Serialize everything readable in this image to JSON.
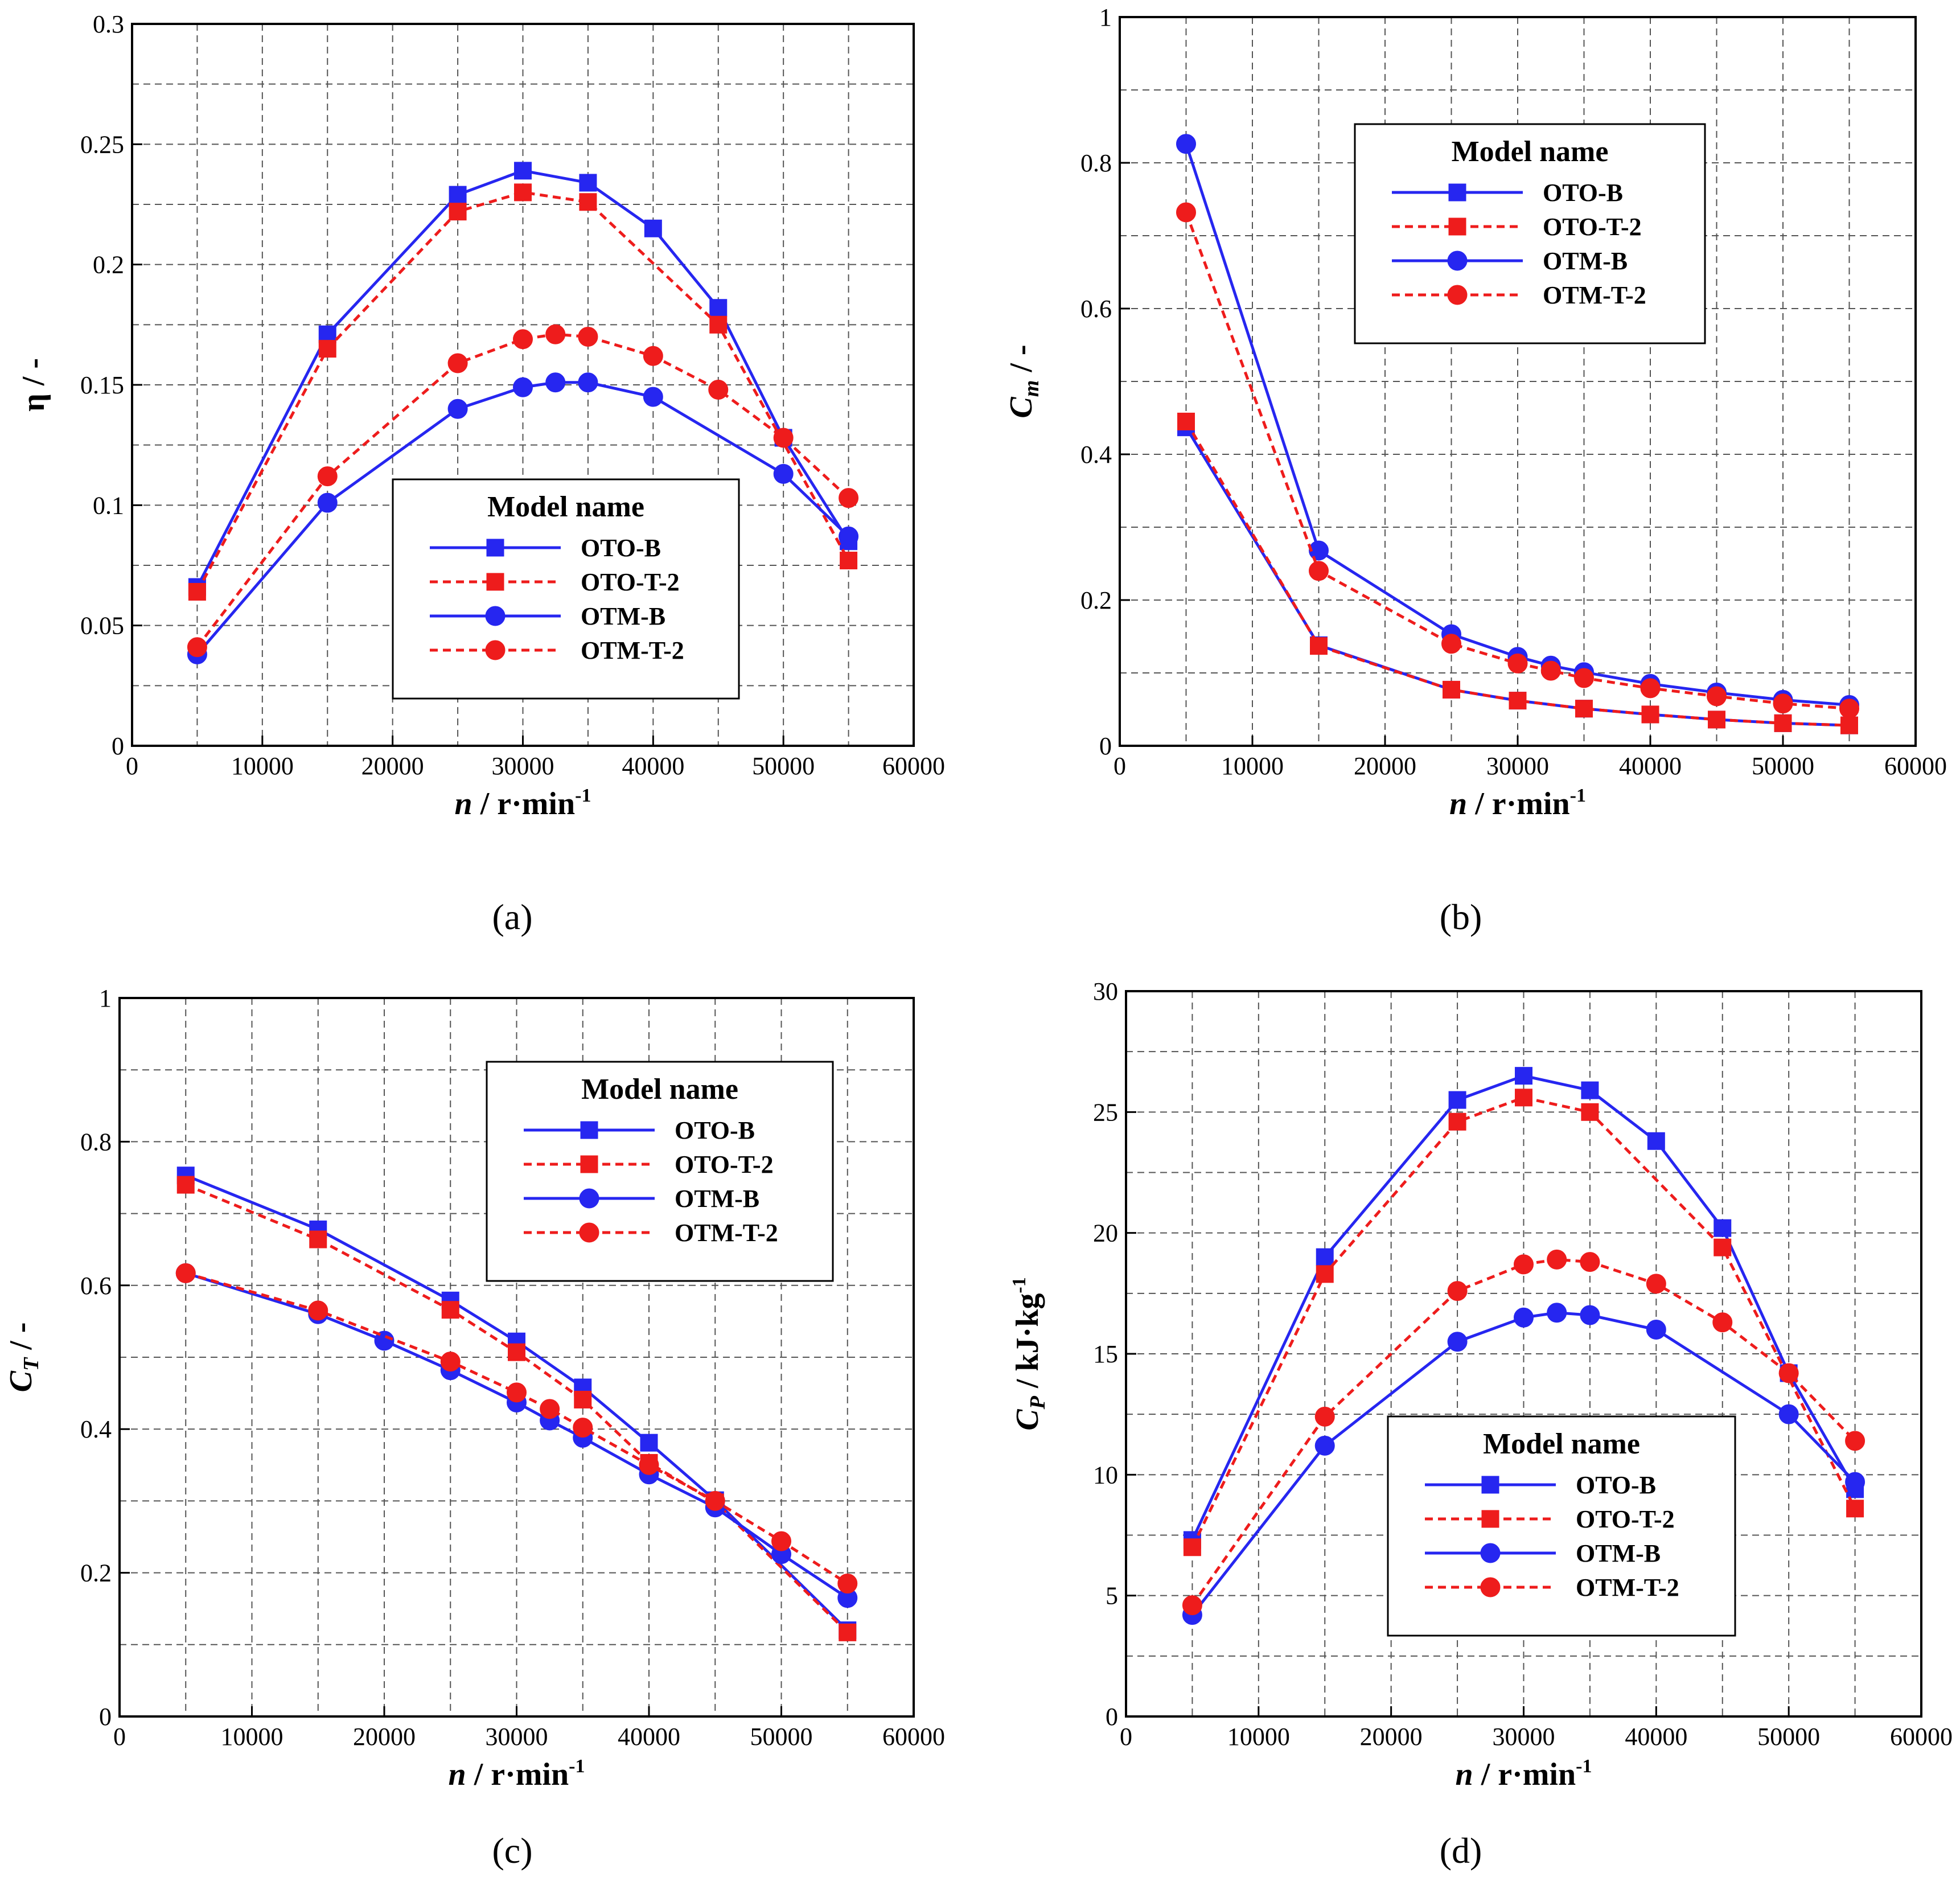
{
  "panel_labels": [
    "(a)",
    "(b)",
    "(c)",
    "(d)"
  ],
  "colors": {
    "blue": "#2626f0",
    "red": "#ee1c1c",
    "grid": "#555555",
    "axis": "#000000"
  },
  "chart_data": [
    {
      "panel": "(a)",
      "type": "line",
      "ylabel": "η / -",
      "xlabel_var": "n",
      "xlabel_unit": " / r·min",
      "xlabel_exp": "-1",
      "xlim": [
        0,
        60000
      ],
      "ylim": [
        0,
        0.3
      ],
      "xticks": [
        0,
        10000,
        20000,
        30000,
        40000,
        50000,
        60000
      ],
      "xtick_labels": [
        "0",
        "10000",
        "20000",
        "30000",
        "40000",
        "50000",
        "60000"
      ],
      "yticks": [
        0,
        0.05,
        0.1,
        0.15,
        0.2,
        0.25,
        0.3
      ],
      "ytick_labels": [
        "0",
        "0.05",
        "0.1",
        "0.15",
        "0.2",
        "0.25",
        "0.3"
      ],
      "legend_title": "Model name",
      "legend_position": "lower-center",
      "series": [
        {
          "name": "OTO-B",
          "marker": "square",
          "line": "solid",
          "color": "blue",
          "x": [
            5000,
            15000,
            25000,
            30000,
            35000,
            40000,
            45000,
            50000,
            55000
          ],
          "y": [
            0.066,
            0.171,
            0.229,
            0.239,
            0.234,
            0.215,
            0.182,
            0.128,
            0.085
          ]
        },
        {
          "name": "OTO-T-2",
          "marker": "square",
          "line": "dashed",
          "color": "red",
          "x": [
            5000,
            15000,
            25000,
            30000,
            35000,
            45000,
            55000
          ],
          "y": [
            0.064,
            0.165,
            0.222,
            0.23,
            0.226,
            0.175,
            0.077
          ]
        },
        {
          "name": "OTM-B",
          "marker": "circle",
          "line": "solid",
          "color": "blue",
          "x": [
            5000,
            15000,
            25000,
            30000,
            32500,
            35000,
            40000,
            50000,
            55000
          ],
          "y": [
            0.038,
            0.101,
            0.14,
            0.149,
            0.151,
            0.151,
            0.145,
            0.113,
            0.087
          ]
        },
        {
          "name": "OTM-T-2",
          "marker": "circle",
          "line": "dashed",
          "color": "red",
          "x": [
            5000,
            15000,
            25000,
            30000,
            32500,
            35000,
            40000,
            45000,
            50000,
            55000
          ],
          "y": [
            0.041,
            0.112,
            0.159,
            0.169,
            0.171,
            0.17,
            0.162,
            0.148,
            0.128,
            0.103
          ]
        }
      ]
    },
    {
      "panel": "(b)",
      "type": "line",
      "ylabel_var": "C",
      "ylabel_sub": "m",
      "ylabel_unit": " / -",
      "xlabel_var": "n",
      "xlabel_unit": " / r·min",
      "xlabel_exp": "-1",
      "xlim": [
        0,
        60000
      ],
      "ylim": [
        0,
        1
      ],
      "xticks": [
        0,
        10000,
        20000,
        30000,
        40000,
        50000,
        60000
      ],
      "xtick_labels": [
        "0",
        "10000",
        "20000",
        "30000",
        "40000",
        "50000",
        "60000"
      ],
      "yticks": [
        0,
        0.2,
        0.4,
        0.6,
        0.8,
        1
      ],
      "ytick_labels": [
        "0",
        "0.2",
        "0.4",
        "0.6",
        "0.8",
        "1"
      ],
      "legend_title": "Model name",
      "legend_position": "upper-center",
      "series": [
        {
          "name": "OTO-B",
          "marker": "square",
          "line": "solid",
          "color": "blue",
          "x": [
            5000,
            15000,
            25000,
            30000,
            35000,
            40000,
            45000,
            50000,
            55000
          ],
          "y": [
            0.437,
            0.138,
            0.077,
            0.062,
            0.051,
            0.043,
            0.036,
            0.031,
            0.028
          ]
        },
        {
          "name": "OTO-T-2",
          "marker": "square",
          "line": "dashed",
          "color": "red",
          "x": [
            5000,
            15000,
            25000,
            30000,
            35000,
            40000,
            45000,
            50000,
            55000
          ],
          "y": [
            0.445,
            0.137,
            0.077,
            0.062,
            0.051,
            0.043,
            0.036,
            0.031,
            0.028
          ]
        },
        {
          "name": "OTM-B",
          "marker": "circle",
          "line": "solid",
          "color": "blue",
          "x": [
            5000,
            15000,
            25000,
            30000,
            32500,
            35000,
            40000,
            45000,
            50000,
            55000
          ],
          "y": [
            0.826,
            0.268,
            0.153,
            0.122,
            0.11,
            0.101,
            0.085,
            0.073,
            0.063,
            0.056
          ]
        },
        {
          "name": "OTM-T-2",
          "marker": "circle",
          "line": "dashed",
          "color": "red",
          "x": [
            5000,
            15000,
            25000,
            30000,
            32500,
            35000,
            40000,
            45000,
            50000,
            55000
          ],
          "y": [
            0.732,
            0.24,
            0.14,
            0.113,
            0.103,
            0.093,
            0.079,
            0.068,
            0.058,
            0.051
          ]
        }
      ]
    },
    {
      "panel": "(c)",
      "type": "line",
      "ylabel_var": "C",
      "ylabel_sub": "T",
      "ylabel_unit": " / -",
      "xlabel_var": "n",
      "xlabel_unit": " / r·min",
      "xlabel_exp": "-1",
      "xlim": [
        0,
        60000
      ],
      "ylim": [
        0,
        1
      ],
      "xticks": [
        0,
        10000,
        20000,
        30000,
        40000,
        50000,
        60000
      ],
      "xtick_labels": [
        "0",
        "10000",
        "20000",
        "30000",
        "40000",
        "50000",
        "60000"
      ],
      "yticks": [
        0,
        0.2,
        0.4,
        0.6,
        0.8,
        1
      ],
      "ytick_labels": [
        "0",
        "0.2",
        "0.4",
        "0.6",
        "0.8",
        "1"
      ],
      "legend_title": "Model name",
      "legend_position": "upper-right",
      "series": [
        {
          "name": "OTO-B",
          "marker": "square",
          "line": "solid",
          "color": "blue",
          "x": [
            5000,
            15000,
            25000,
            30000,
            35000,
            40000,
            45000,
            55000
          ],
          "y": [
            0.753,
            0.678,
            0.579,
            0.522,
            0.458,
            0.381,
            0.301,
            0.12
          ]
        },
        {
          "name": "OTO-T-2",
          "marker": "square",
          "line": "dashed",
          "color": "red",
          "x": [
            5000,
            15000,
            25000,
            30000,
            35000,
            40000,
            45000,
            55000
          ],
          "y": [
            0.74,
            0.664,
            0.566,
            0.507,
            0.441,
            0.353,
            0.298,
            0.117
          ]
        },
        {
          "name": "OTM-B",
          "marker": "circle",
          "line": "solid",
          "color": "blue",
          "x": [
            5000,
            15000,
            20000,
            25000,
            30000,
            32500,
            35000,
            40000,
            45000,
            50000,
            55000
          ],
          "y": [
            0.617,
            0.56,
            0.523,
            0.482,
            0.437,
            0.412,
            0.388,
            0.337,
            0.291,
            0.226,
            0.165
          ]
        },
        {
          "name": "OTM-T-2",
          "marker": "circle",
          "line": "dashed",
          "color": "red",
          "x": [
            5000,
            15000,
            25000,
            30000,
            32500,
            35000,
            40000,
            45000,
            50000,
            55000
          ],
          "y": [
            0.617,
            0.565,
            0.494,
            0.451,
            0.428,
            0.402,
            0.35,
            0.3,
            0.244,
            0.185
          ]
        }
      ]
    },
    {
      "panel": "(d)",
      "type": "line",
      "ylabel_var": "C",
      "ylabel_sub": "P",
      "ylabel_unit": " / kJ·kg",
      "ylabel_exp": "-1",
      "xlabel_var": "n",
      "xlabel_unit": " / r·min",
      "xlabel_exp": "-1",
      "xlim": [
        0,
        60000
      ],
      "ylim": [
        0,
        30
      ],
      "xticks": [
        0,
        10000,
        20000,
        30000,
        40000,
        50000,
        60000
      ],
      "xtick_labels": [
        "0",
        "10000",
        "20000",
        "30000",
        "40000",
        "50000",
        "60000"
      ],
      "yticks": [
        0,
        5,
        10,
        15,
        20,
        25,
        30
      ],
      "ytick_labels": [
        "0",
        "5",
        "10",
        "15",
        "20",
        "25",
        "30"
      ],
      "legend_title": "Model name",
      "legend_position": "lower-center",
      "series": [
        {
          "name": "OTO-B",
          "marker": "square",
          "line": "solid",
          "color": "blue",
          "x": [
            5000,
            15000,
            25000,
            30000,
            35000,
            40000,
            45000,
            50000,
            55000
          ],
          "y": [
            7.3,
            19.0,
            25.5,
            26.5,
            25.9,
            23.8,
            20.2,
            14.2,
            9.4
          ]
        },
        {
          "name": "OTO-T-2",
          "marker": "square",
          "line": "dashed",
          "color": "red",
          "x": [
            5000,
            15000,
            25000,
            30000,
            35000,
            45000,
            55000
          ],
          "y": [
            7.0,
            18.3,
            24.6,
            25.6,
            25.0,
            19.4,
            8.6
          ]
        },
        {
          "name": "OTM-B",
          "marker": "circle",
          "line": "solid",
          "color": "blue",
          "x": [
            5000,
            15000,
            25000,
            30000,
            32500,
            35000,
            40000,
            50000,
            55000
          ],
          "y": [
            4.2,
            11.2,
            15.5,
            16.5,
            16.7,
            16.6,
            16.0,
            12.5,
            9.7
          ]
        },
        {
          "name": "OTM-T-2",
          "marker": "circle",
          "line": "dashed",
          "color": "red",
          "x": [
            5000,
            15000,
            25000,
            30000,
            32500,
            35000,
            40000,
            45000,
            50000,
            55000
          ],
          "y": [
            4.6,
            12.4,
            17.6,
            18.7,
            18.9,
            18.8,
            17.9,
            16.3,
            14.2,
            11.4
          ]
        }
      ]
    }
  ]
}
